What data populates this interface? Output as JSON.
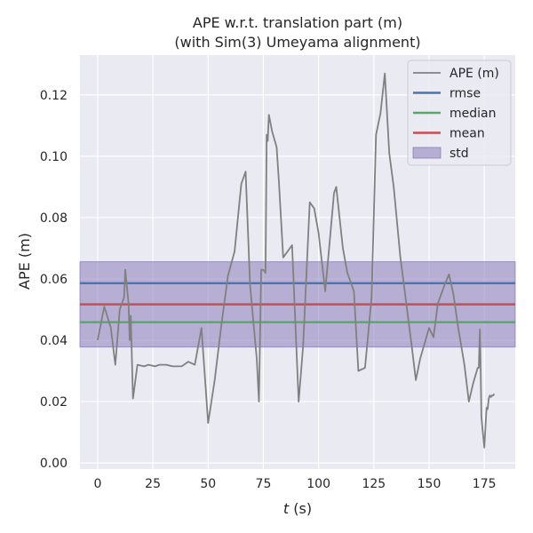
{
  "chart_data": {
    "type": "line",
    "title_line1": "APE w.r.t. translation part (m)",
    "title_line2": "(with Sim(3) Umeyama alignment)",
    "xlabel_var": "t",
    "xlabel_unit": " (s)",
    "ylabel": "APE (m)",
    "xlim": [
      -8,
      189
    ],
    "ylim": [
      -0.002,
      0.133
    ],
    "xticks": [
      0,
      25,
      50,
      75,
      100,
      125,
      150,
      175
    ],
    "yticks": [
      0.0,
      0.02,
      0.04,
      0.06,
      0.08,
      0.1,
      0.12
    ],
    "ytick_labels": [
      "0.00",
      "0.02",
      "0.04",
      "0.06",
      "0.08",
      "0.10",
      "0.12"
    ],
    "grid": true,
    "legend_position": "top-right",
    "colors": {
      "background": "#eaeaf2",
      "grid": "#ffffff",
      "ape": "#808080",
      "rmse": "#4c72b0",
      "median": "#55a868",
      "mean": "#c44e52",
      "std": "#8172b3"
    },
    "series": [
      {
        "name": "APE (m)",
        "x": [
          0,
          3,
          6,
          8,
          10,
          12,
          12.5,
          14,
          14.5,
          15,
          16,
          18,
          21,
          23,
          26,
          28,
          31,
          34,
          38,
          41,
          44,
          47,
          50,
          53,
          56,
          59,
          62,
          65,
          67,
          69,
          72,
          73,
          74,
          75,
          76,
          76.5,
          77,
          77.5,
          79,
          81,
          82,
          84,
          87,
          88,
          91,
          93,
          96,
          98,
          100,
          103,
          105,
          107,
          108,
          111,
          113,
          116,
          118,
          121,
          124,
          126,
          128,
          130,
          132,
          134,
          137,
          139,
          142,
          144,
          146,
          148,
          150,
          152,
          154,
          157,
          159,
          161,
          163,
          166,
          168,
          170,
          172,
          172.5,
          173,
          173.3,
          173.7,
          174.2,
          175,
          176,
          176.5,
          177,
          177.5,
          178,
          178.5,
          179,
          179.5
        ],
        "values": [
          0.04,
          0.051,
          0.044,
          0.032,
          0.05,
          0.054,
          0.063,
          0.052,
          0.04,
          0.048,
          0.021,
          0.032,
          0.0315,
          0.032,
          0.0315,
          0.032,
          0.032,
          0.0315,
          0.0315,
          0.033,
          0.032,
          0.044,
          0.013,
          0.027,
          0.045,
          0.061,
          0.069,
          0.091,
          0.095,
          0.058,
          0.034,
          0.02,
          0.063,
          0.063,
          0.062,
          0.107,
          0.105,
          0.1135,
          0.108,
          0.103,
          0.092,
          0.067,
          0.07,
          0.071,
          0.02,
          0.038,
          0.085,
          0.083,
          0.075,
          0.056,
          0.072,
          0.088,
          0.09,
          0.07,
          0.062,
          0.056,
          0.03,
          0.031,
          0.054,
          0.107,
          0.114,
          0.127,
          0.101,
          0.09,
          0.067,
          0.056,
          0.039,
          0.027,
          0.034,
          0.039,
          0.044,
          0.041,
          0.052,
          0.058,
          0.0615,
          0.055,
          0.045,
          0.032,
          0.02,
          0.026,
          0.031,
          0.031,
          0.0435,
          0.034,
          0.015,
          0.011,
          0.005,
          0.018,
          0.0175,
          0.021,
          0.022,
          0.0215,
          0.022,
          0.022,
          0.0225
        ]
      }
    ],
    "stats": {
      "rmse": 0.0586,
      "median": 0.0459,
      "mean": 0.0517,
      "std_low": 0.0378,
      "std_high": 0.0656
    },
    "legend": [
      "APE (m)",
      "rmse",
      "median",
      "mean",
      "std"
    ]
  }
}
